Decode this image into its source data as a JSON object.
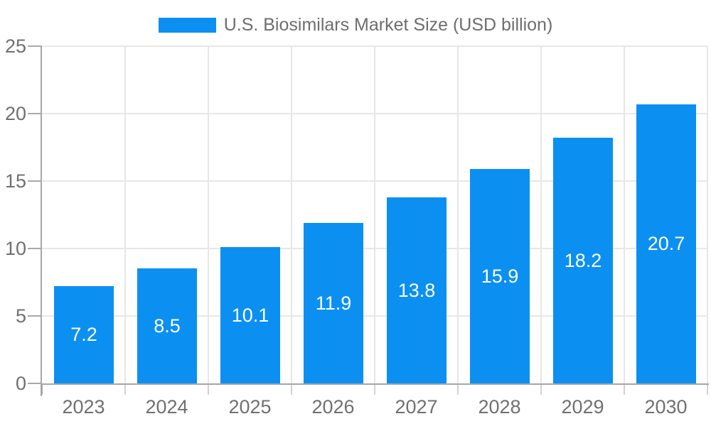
{
  "chart_data": {
    "type": "bar",
    "title": "U.S. Biosimilars Market Size (USD billion)",
    "legend": {
      "label": "U.S. Biosimilars Market Size (USD billion)",
      "position": "top"
    },
    "categories": [
      "2023",
      "2024",
      "2025",
      "2026",
      "2027",
      "2028",
      "2029",
      "2030"
    ],
    "values": [
      7.2,
      8.5,
      10.1,
      11.9,
      13.8,
      15.9,
      18.2,
      20.7
    ],
    "xlabel": "",
    "ylabel": "",
    "y_ticks": [
      0,
      5,
      10,
      15,
      20,
      25
    ],
    "ylim": [
      0,
      25
    ],
    "grid": true,
    "bar_value_labels_visible": true,
    "colors": {
      "bar": "#0b90f2",
      "bar_label": "#ffffff",
      "axis_text": "#707070",
      "legend_text": "#6e6e6e",
      "gridline": "#e7e7e7",
      "axis_line": "#a6a6a6",
      "y_tick_mark": "#a9a9a9",
      "x_tick_mark": "#d2d2d2",
      "background": "#ffffff"
    }
  }
}
